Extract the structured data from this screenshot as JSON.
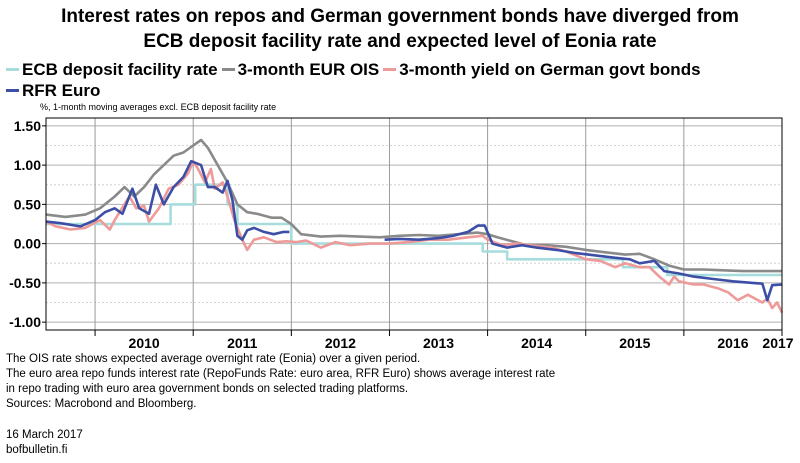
{
  "header": {
    "title_line1": "Interest rates on repos and German government bonds have diverged from",
    "title_line2": "ECB deposit facility rate and expected level of Eonia rate"
  },
  "subnote": "%, 1-month moving averages excl. ECB deposit facility rate",
  "footer": {
    "line1": "The OIS rate shows expected average overnight rate (Eonia) over a given period.",
    "line2": "The euro area repo funds interest rate (RepoFunds Rate: euro area, RFR Euro) shows average interest rate",
    "line3": "in repo trading with euro area government bonds on selected trading platforms.",
    "line4": "Sources: Macrobond and Bloomberg.",
    "date": "16 March 2017",
    "site": "bofbulletin.fi"
  },
  "chart_data": {
    "type": "line",
    "xlim": [
      2009.5,
      2017.0
    ],
    "ylim": [
      -1.1,
      1.6
    ],
    "x_ticks": [
      "2010",
      "2011",
      "2012",
      "2013",
      "2014",
      "2015",
      "2016",
      "2017"
    ],
    "y_ticks": [
      "1.50",
      "1.00",
      "0.50",
      "0.00",
      "-0.50",
      "-1.00"
    ],
    "grid": true,
    "legend_position": "top",
    "series": [
      {
        "name": "ECB deposit facility rate",
        "color": "#a7dcdd",
        "step": true,
        "points": [
          [
            2009.5,
            0.25
          ],
          [
            2010.77,
            0.25
          ],
          [
            2010.77,
            0.5
          ],
          [
            2011.02,
            0.5
          ],
          [
            2011.02,
            0.75
          ],
          [
            2011.35,
            0.75
          ],
          [
            2011.35,
            0.5
          ],
          [
            2011.45,
            0.5
          ],
          [
            2011.45,
            0.25
          ],
          [
            2012.0,
            0.25
          ],
          [
            2012.0,
            0.0
          ],
          [
            2013.95,
            0.0
          ],
          [
            2013.95,
            -0.1
          ],
          [
            2014.2,
            -0.1
          ],
          [
            2014.2,
            -0.2
          ],
          [
            2015.38,
            -0.2
          ],
          [
            2015.38,
            -0.3
          ],
          [
            2015.83,
            -0.3
          ],
          [
            2015.83,
            -0.4
          ],
          [
            2017.0,
            -0.4
          ]
        ]
      },
      {
        "name": "3-month EUR OIS",
        "color": "#8a8a8a",
        "points": [
          [
            2009.5,
            0.37
          ],
          [
            2009.7,
            0.34
          ],
          [
            2009.9,
            0.37
          ],
          [
            2010.05,
            0.45
          ],
          [
            2010.2,
            0.6
          ],
          [
            2010.3,
            0.72
          ],
          [
            2010.4,
            0.6
          ],
          [
            2010.5,
            0.72
          ],
          [
            2010.6,
            0.88
          ],
          [
            2010.7,
            1.0
          ],
          [
            2010.8,
            1.12
          ],
          [
            2010.9,
            1.16
          ],
          [
            2011.0,
            1.25
          ],
          [
            2011.08,
            1.32
          ],
          [
            2011.15,
            1.22
          ],
          [
            2011.25,
            1.0
          ],
          [
            2011.35,
            0.78
          ],
          [
            2011.45,
            0.5
          ],
          [
            2011.55,
            0.4
          ],
          [
            2011.65,
            0.38
          ],
          [
            2011.8,
            0.33
          ],
          [
            2011.9,
            0.33
          ],
          [
            2012.0,
            0.25
          ],
          [
            2012.1,
            0.12
          ],
          [
            2012.3,
            0.09
          ],
          [
            2012.5,
            0.1
          ],
          [
            2012.7,
            0.09
          ],
          [
            2012.9,
            0.08
          ],
          [
            2013.1,
            0.1
          ],
          [
            2013.3,
            0.11
          ],
          [
            2013.5,
            0.1
          ],
          [
            2013.7,
            0.12
          ],
          [
            2013.9,
            0.14
          ],
          [
            2014.0,
            0.12
          ],
          [
            2014.1,
            0.08
          ],
          [
            2014.25,
            0.03
          ],
          [
            2014.4,
            -0.02
          ],
          [
            2014.6,
            -0.02
          ],
          [
            2014.8,
            -0.04
          ],
          [
            2015.0,
            -0.08
          ],
          [
            2015.2,
            -0.11
          ],
          [
            2015.4,
            -0.14
          ],
          [
            2015.55,
            -0.13
          ],
          [
            2015.7,
            -0.2
          ],
          [
            2015.85,
            -0.28
          ],
          [
            2016.0,
            -0.33
          ],
          [
            2016.2,
            -0.33
          ],
          [
            2016.4,
            -0.34
          ],
          [
            2016.6,
            -0.35
          ],
          [
            2016.8,
            -0.35
          ],
          [
            2017.0,
            -0.35
          ]
        ]
      },
      {
        "name": "3-month yield on German govt bonds",
        "color": "#ee9a98",
        "points": [
          [
            2009.5,
            0.28
          ],
          [
            2009.6,
            0.22
          ],
          [
            2009.75,
            0.18
          ],
          [
            2009.9,
            0.2
          ],
          [
            2010.05,
            0.3
          ],
          [
            2010.15,
            0.18
          ],
          [
            2010.2,
            0.3
          ],
          [
            2010.35,
            0.6
          ],
          [
            2010.42,
            0.45
          ],
          [
            2010.5,
            0.48
          ],
          [
            2010.55,
            0.28
          ],
          [
            2010.65,
            0.45
          ],
          [
            2010.75,
            0.7
          ],
          [
            2010.85,
            0.75
          ],
          [
            2010.95,
            0.9
          ],
          [
            2011.0,
            1.05
          ],
          [
            2011.05,
            0.95
          ],
          [
            2011.12,
            0.78
          ],
          [
            2011.18,
            0.95
          ],
          [
            2011.22,
            0.7
          ],
          [
            2011.3,
            0.78
          ],
          [
            2011.35,
            0.6
          ],
          [
            2011.42,
            0.3
          ],
          [
            2011.5,
            0.05
          ],
          [
            2011.55,
            -0.08
          ],
          [
            2011.62,
            0.05
          ],
          [
            2011.72,
            0.08
          ],
          [
            2011.85,
            0.02
          ],
          [
            2011.95,
            0.03
          ],
          [
            2012.05,
            0.02
          ],
          [
            2012.15,
            0.04
          ],
          [
            2012.3,
            -0.05
          ],
          [
            2012.45,
            0.02
          ],
          [
            2012.6,
            -0.02
          ],
          [
            2012.8,
            0.0
          ],
          [
            2013.0,
            0.0
          ],
          [
            2013.2,
            0.02
          ],
          [
            2013.4,
            0.05
          ],
          [
            2013.6,
            0.05
          ],
          [
            2013.8,
            0.08
          ],
          [
            2013.95,
            0.1
          ],
          [
            2014.0,
            0.05
          ],
          [
            2014.15,
            -0.02
          ],
          [
            2014.3,
            0.0
          ],
          [
            2014.5,
            -0.03
          ],
          [
            2014.65,
            -0.05
          ],
          [
            2014.8,
            -0.1
          ],
          [
            2015.0,
            -0.2
          ],
          [
            2015.15,
            -0.22
          ],
          [
            2015.3,
            -0.3
          ],
          [
            2015.4,
            -0.25
          ],
          [
            2015.55,
            -0.3
          ],
          [
            2015.65,
            -0.3
          ],
          [
            2015.75,
            -0.42
          ],
          [
            2015.85,
            -0.52
          ],
          [
            2015.9,
            -0.42
          ],
          [
            2015.95,
            -0.48
          ],
          [
            2016.1,
            -0.52
          ],
          [
            2016.2,
            -0.52
          ],
          [
            2016.35,
            -0.57
          ],
          [
            2016.45,
            -0.62
          ],
          [
            2016.55,
            -0.72
          ],
          [
            2016.65,
            -0.65
          ],
          [
            2016.8,
            -0.75
          ],
          [
            2016.85,
            -0.7
          ],
          [
            2016.9,
            -0.82
          ],
          [
            2016.95,
            -0.75
          ],
          [
            2017.0,
            -0.88
          ]
        ]
      },
      {
        "name": "RFR Euro",
        "color": "#3d4ea6",
        "points": [
          [
            2009.5,
            0.28
          ],
          [
            2009.65,
            0.26
          ],
          [
            2009.85,
            0.22
          ],
          [
            2010.0,
            0.3
          ],
          [
            2010.1,
            0.4
          ],
          [
            2010.2,
            0.45
          ],
          [
            2010.28,
            0.38
          ],
          [
            2010.38,
            0.7
          ],
          [
            2010.45,
            0.45
          ],
          [
            2010.55,
            0.38
          ],
          [
            2010.62,
            0.75
          ],
          [
            2010.7,
            0.5
          ],
          [
            2010.8,
            0.72
          ],
          [
            2010.9,
            0.85
          ],
          [
            2010.98,
            1.05
          ],
          [
            2011.08,
            1.0
          ],
          [
            2011.15,
            0.72
          ],
          [
            2011.22,
            0.72
          ],
          [
            2011.3,
            0.65
          ],
          [
            2011.35,
            0.8
          ],
          [
            2011.4,
            0.55
          ],
          [
            2011.45,
            0.1
          ],
          [
            2011.5,
            0.05
          ],
          [
            2011.55,
            0.17
          ],
          [
            2011.62,
            0.2
          ],
          [
            2011.72,
            0.15
          ],
          [
            2011.82,
            0.12
          ],
          [
            2011.92,
            0.15
          ],
          [
            2011.98,
            0.15
          ]
        ]
      },
      {
        "name": "RFR Euro",
        "color": "#3d4ea6",
        "points": [
          [
            2012.95,
            0.05
          ],
          [
            2013.1,
            0.06
          ],
          [
            2013.3,
            0.05
          ],
          [
            2013.5,
            0.07
          ],
          [
            2013.65,
            0.1
          ],
          [
            2013.8,
            0.15
          ],
          [
            2013.9,
            0.23
          ],
          [
            2013.97,
            0.23
          ],
          [
            2014.05,
            0.0
          ],
          [
            2014.2,
            -0.05
          ],
          [
            2014.35,
            -0.02
          ],
          [
            2014.5,
            -0.05
          ],
          [
            2014.7,
            -0.08
          ],
          [
            2014.9,
            -0.12
          ],
          [
            2015.1,
            -0.15
          ],
          [
            2015.3,
            -0.18
          ],
          [
            2015.45,
            -0.2
          ],
          [
            2015.55,
            -0.25
          ],
          [
            2015.7,
            -0.22
          ],
          [
            2015.8,
            -0.35
          ],
          [
            2015.95,
            -0.38
          ],
          [
            2016.1,
            -0.42
          ],
          [
            2016.3,
            -0.45
          ],
          [
            2016.5,
            -0.48
          ],
          [
            2016.7,
            -0.5
          ],
          [
            2016.8,
            -0.51
          ],
          [
            2016.85,
            -0.72
          ],
          [
            2016.9,
            -0.53
          ],
          [
            2017.0,
            -0.52
          ]
        ]
      }
    ]
  }
}
